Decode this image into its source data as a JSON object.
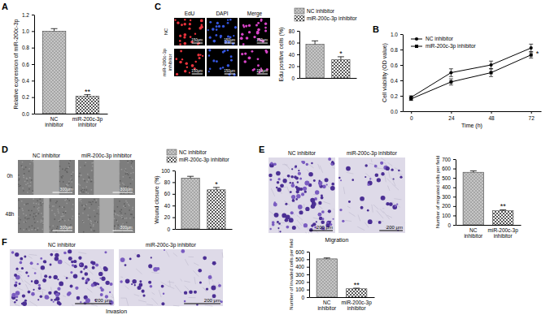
{
  "figure": {
    "panel_labels": [
      "A",
      "B",
      "C",
      "D",
      "E",
      "F"
    ],
    "c_columns": [
      "EdU",
      "DAPI",
      "Merge"
    ],
    "c_rows": [
      "NC",
      "miR-200c-3p inhibitor"
    ],
    "c_scale": "150μm",
    "d_columns": [
      "NC inhibitor",
      "miR-200c-3p inhibitor"
    ],
    "d_rows": [
      "0h",
      "48h"
    ],
    "d_scale": "300μm",
    "e_columns": [
      "NC inhibitor",
      "miR-200c-3p inhibitor"
    ],
    "e_caption": "Migration",
    "e_scale": "200 μm",
    "f_columns": [
      "NC inhibitor",
      "miR-200c-3p inhibitor"
    ],
    "f_caption": "Invasion",
    "f_scale": "200 μm"
  },
  "chart_data": [
    {
      "type": "bar",
      "ylabel": "Relative expression of miR-200c-3p",
      "categories": [
        "NC inhibitor",
        "miR-200c-3p inhibitor"
      ],
      "values": [
        1.0,
        0.21
      ],
      "errors": [
        0.03,
        0.02
      ],
      "colors": [
        "#a6a6a6",
        "#595959"
      ],
      "ylim": [
        0,
        1.2
      ],
      "yticks": [
        {
          "value": 0,
          "label": "0.0"
        },
        0.2,
        0.4,
        0.6,
        0.8,
        {
          "value": 1,
          "label": "1.0"
        },
        1.2
      ],
      "annotations": [
        {
          "text": "**",
          "category": "miR-200c-3p inhibitor"
        }
      ]
    },
    {
      "type": "line",
      "xlabel": "Time (h)",
      "ylabel": "Cell viability (OD value)",
      "x": [
        0,
        24,
        48,
        72
      ],
      "xlim": [
        -5,
        78
      ],
      "xticks": [
        0,
        24,
        48,
        72
      ],
      "ylim": [
        0,
        1
      ],
      "yticks": [
        {
          "value": 0,
          "label": "0.0"
        },
        0.2,
        0.4,
        0.6,
        0.8,
        {
          "value": 1,
          "label": "1.0"
        }
      ],
      "legend": "upper left",
      "series": [
        {
          "name": "NC inhibitor",
          "color": "#000000",
          "marker": "circle",
          "values": [
            0.18,
            0.5,
            0.6,
            0.82
          ],
          "errors": [
            0.02,
            0.05,
            0.05,
            0.05
          ]
        },
        {
          "name": "miR-200c-3p inhibitor",
          "color": "#000000",
          "marker": "square",
          "values": [
            0.16,
            0.38,
            0.5,
            0.73
          ],
          "errors": [
            0.02,
            0.04,
            0.05,
            0.04
          ]
        }
      ],
      "annotations": [
        {
          "text": "*",
          "x": 72
        }
      ]
    },
    {
      "type": "bar",
      "ylabel": "Edu positive cells (%)",
      "categories": [
        "NC inhibitor",
        "miR-200c-3p inhibitor"
      ],
      "values": [
        57,
        31
      ],
      "errors": [
        6,
        5
      ],
      "colors": [
        "#a6a6a6",
        "#595959"
      ],
      "ylim": [
        0,
        80
      ],
      "yticks": [
        0,
        20,
        40,
        60,
        80
      ],
      "tick_labels": "y",
      "legend": "top",
      "annotations": [
        {
          "text": "*",
          "category": "miR-200c-3p inhibitor"
        }
      ]
    },
    {
      "type": "bar",
      "ylabel": "Wound closure (%)",
      "categories": [
        "NC inhibitor",
        "miR-200c-3p inhibitor"
      ],
      "values": [
        87,
        67
      ],
      "errors": [
        3,
        4
      ],
      "colors": [
        "#a6a6a6",
        "#595959"
      ],
      "ylim": [
        0,
        100
      ],
      "yticks": [
        0,
        20,
        40,
        60,
        80,
        100
      ],
      "tick_labels": "y",
      "legend": "top",
      "annotations": [
        {
          "text": "*",
          "category": "miR-200c-3p inhibitor"
        }
      ]
    },
    {
      "type": "bar",
      "ylabel": "Number of migrated cells per field",
      "categories": [
        "NC inhibitor",
        "miR-200c-3p inhibitor"
      ],
      "values": [
        560,
        150
      ],
      "errors": [
        15,
        10
      ],
      "colors": [
        "#a6a6a6",
        "#595959"
      ],
      "ylim": [
        0,
        700
      ],
      "yticks": [
        0,
        100,
        200,
        300,
        400,
        500,
        600,
        700
      ],
      "annotations": [
        {
          "text": "**",
          "category": "miR-200c-3p inhibitor"
        }
      ]
    },
    {
      "type": "bar",
      "ylabel": "Number of invaded cells per field",
      "categories": [
        "NC inhibitor",
        "miR-200c-3p inhibitor"
      ],
      "values": [
        505,
        110
      ],
      "errors": [
        12,
        8
      ],
      "colors": [
        "#a6a6a6",
        "#595959"
      ],
      "ylim": [
        0,
        600
      ],
      "yticks": [
        0,
        100,
        200,
        300,
        400,
        500,
        600
      ],
      "annotations": [
        {
          "text": "**",
          "category": "miR-200c-3p inhibitor"
        }
      ]
    }
  ]
}
